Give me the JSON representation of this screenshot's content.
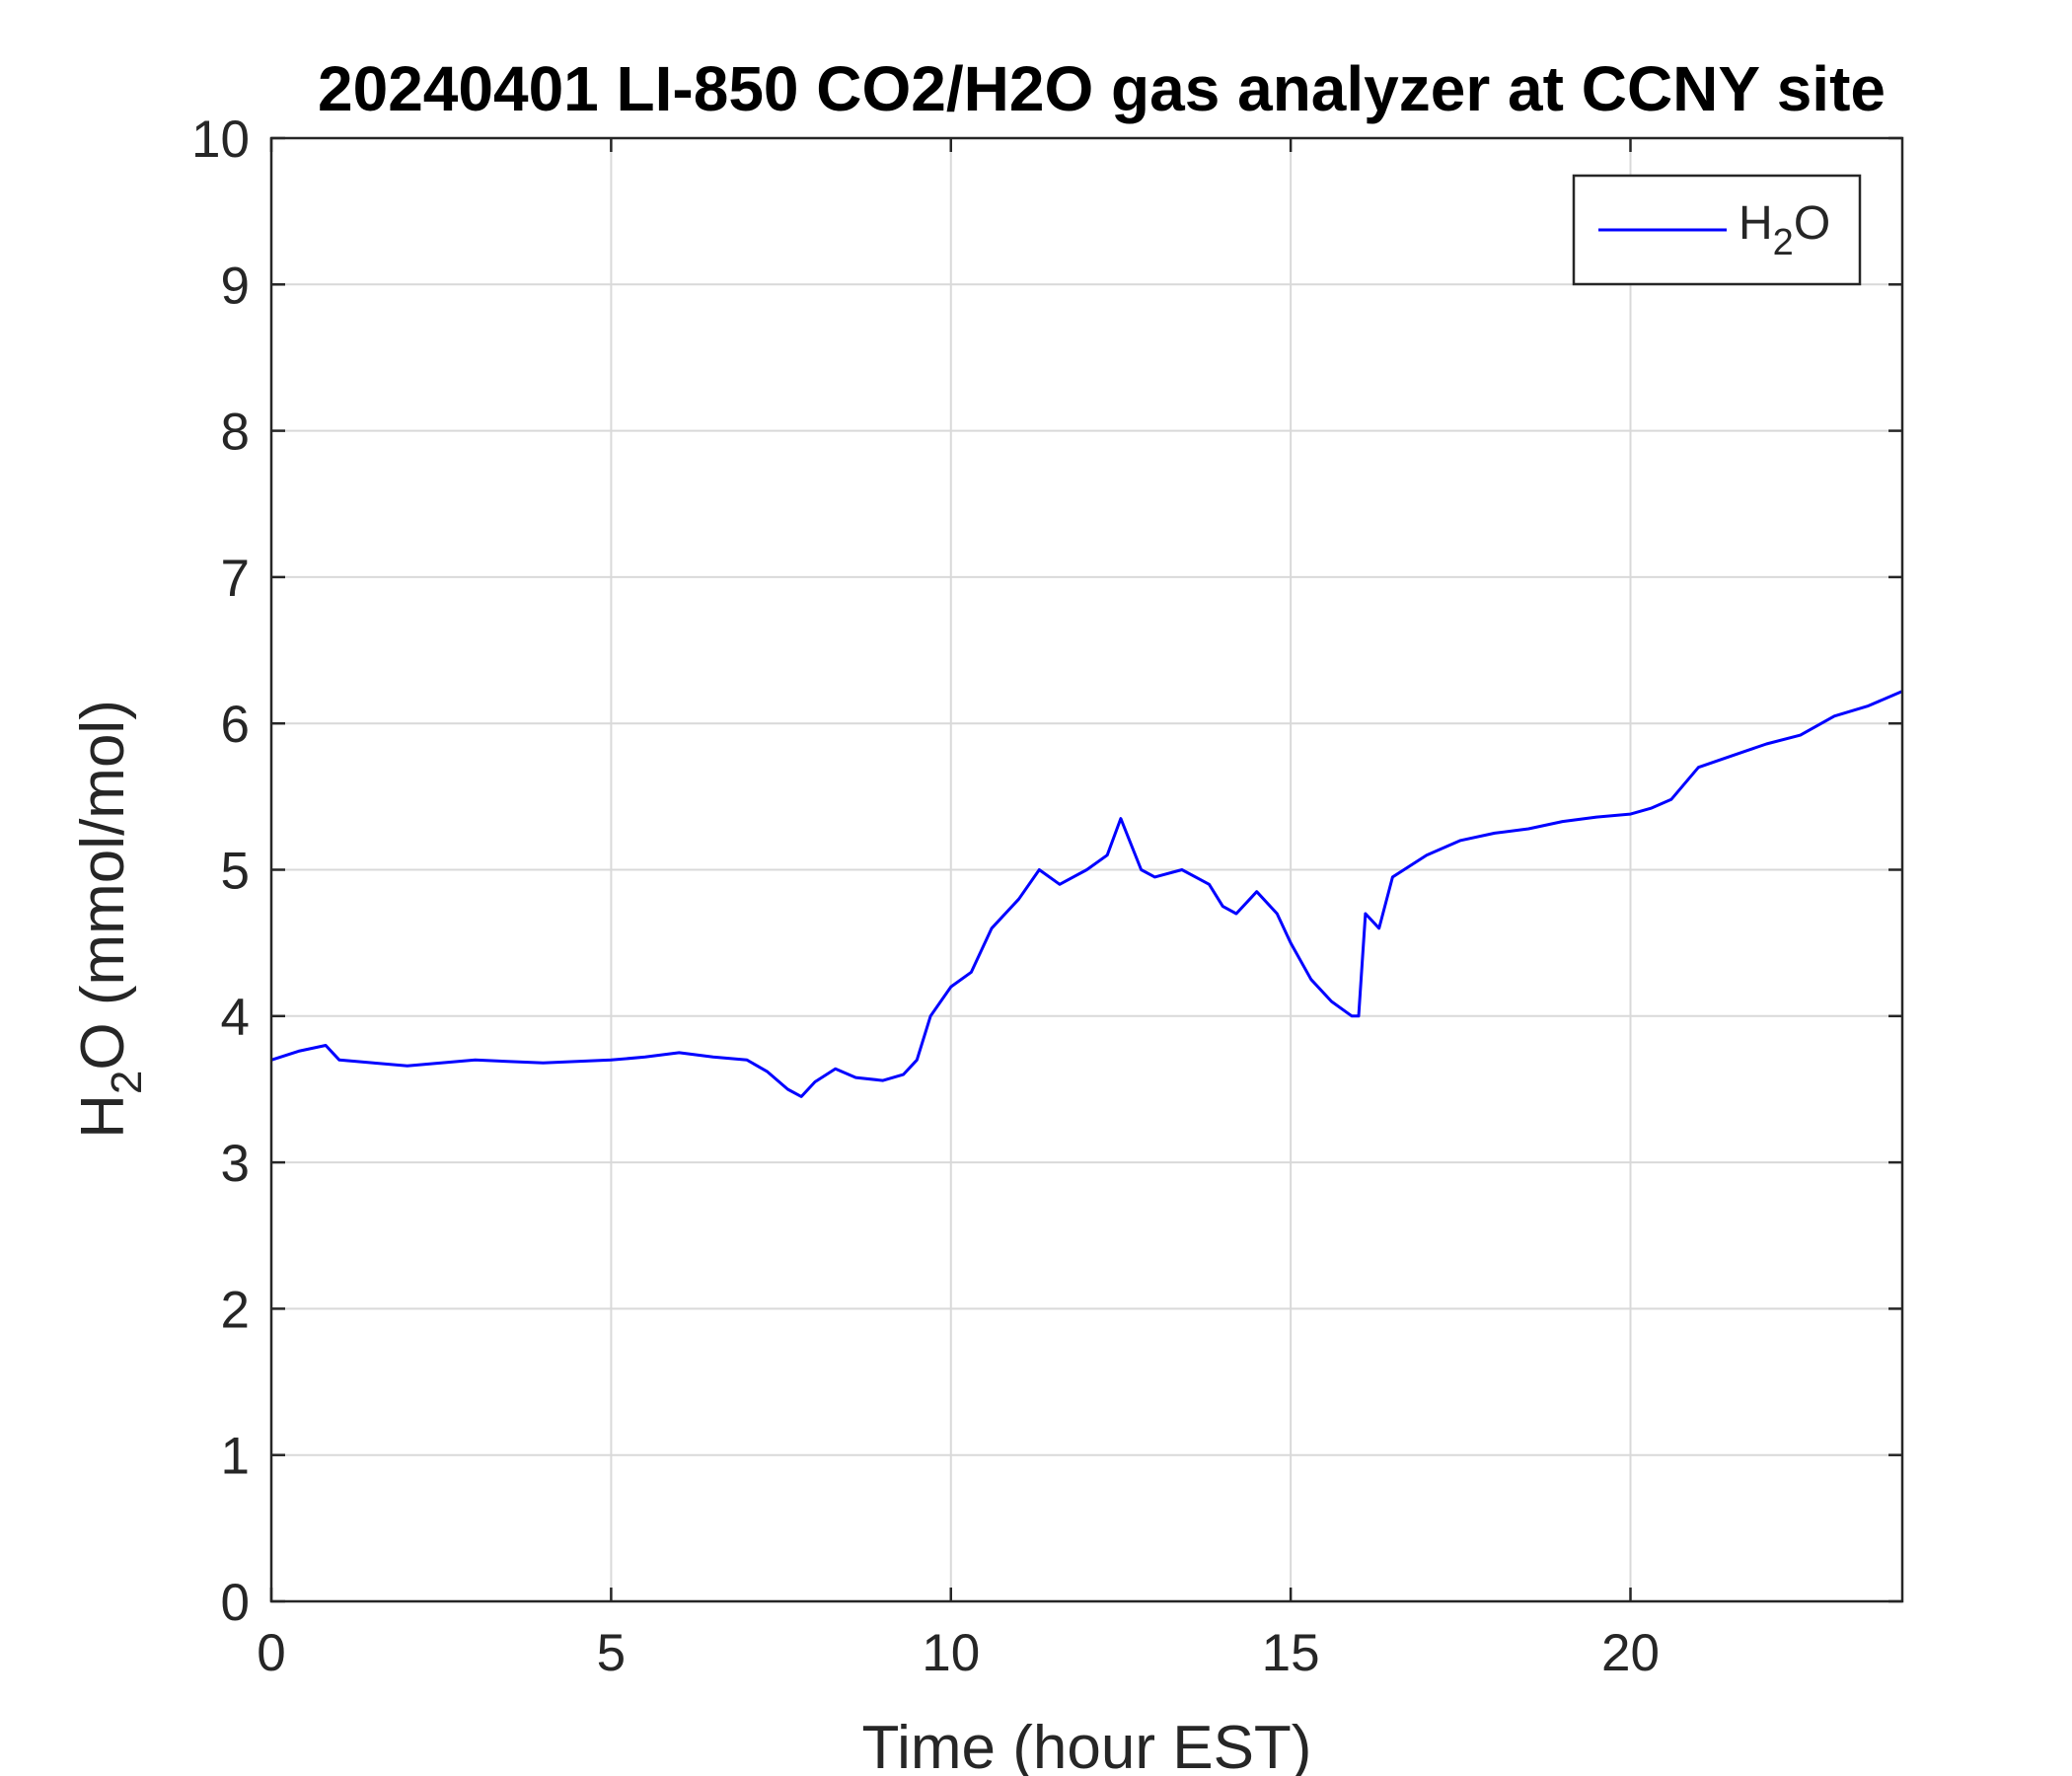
{
  "chart_data": {
    "type": "line",
    "title": "20240401 LI-850 CO2/H2O gas analyzer at CCNY site",
    "xlabel": "Time (hour EST)",
    "ylabel": {
      "base": "H",
      "sub": "2",
      "rest": "O (mmol/mol)"
    },
    "xlim": [
      0,
      24
    ],
    "ylim": [
      0,
      10
    ],
    "xticks": [
      0,
      5,
      10,
      15,
      20
    ],
    "yticks": [
      0,
      1,
      2,
      3,
      4,
      5,
      6,
      7,
      8,
      9,
      10
    ],
    "grid": true,
    "legend": {
      "position": "top-right",
      "entry": {
        "base": "H",
        "sub": "2",
        "rest": "O"
      }
    },
    "series": [
      {
        "color": "#0000ff",
        "x": [
          0,
          0.4,
          0.8,
          1.0,
          1.5,
          2.0,
          3.0,
          4.0,
          5.0,
          5.5,
          6.0,
          6.5,
          7.0,
          7.3,
          7.6,
          7.8,
          8.0,
          8.3,
          8.6,
          9.0,
          9.3,
          9.5,
          9.7,
          10.0,
          10.3,
          10.6,
          11.0,
          11.3,
          11.6,
          12.0,
          12.3,
          12.5,
          12.8,
          13.0,
          13.4,
          13.8,
          14.0,
          14.2,
          14.5,
          14.8,
          15.0,
          15.3,
          15.6,
          15.9,
          16.0,
          16.1,
          16.3,
          16.5,
          17.0,
          17.5,
          18.0,
          18.5,
          19.0,
          19.5,
          20.0,
          20.3,
          20.6,
          21.0,
          21.5,
          22.0,
          22.5,
          23.0,
          23.5,
          24.0
        ],
        "y": [
          3.7,
          3.76,
          3.8,
          3.7,
          3.68,
          3.66,
          3.7,
          3.68,
          3.7,
          3.72,
          3.75,
          3.72,
          3.7,
          3.62,
          3.5,
          3.45,
          3.55,
          3.64,
          3.58,
          3.56,
          3.6,
          3.7,
          4.0,
          4.2,
          4.3,
          4.6,
          4.8,
          5.0,
          4.9,
          5.0,
          5.1,
          5.35,
          5.0,
          4.95,
          5.0,
          4.9,
          4.75,
          4.7,
          4.85,
          4.7,
          4.5,
          4.25,
          4.1,
          4.0,
          4.0,
          4.7,
          4.6,
          4.95,
          5.1,
          5.2,
          5.25,
          5.28,
          5.33,
          5.36,
          5.38,
          5.42,
          5.48,
          5.7,
          5.78,
          5.86,
          5.92,
          6.05,
          6.12,
          6.22
        ]
      }
    ]
  }
}
